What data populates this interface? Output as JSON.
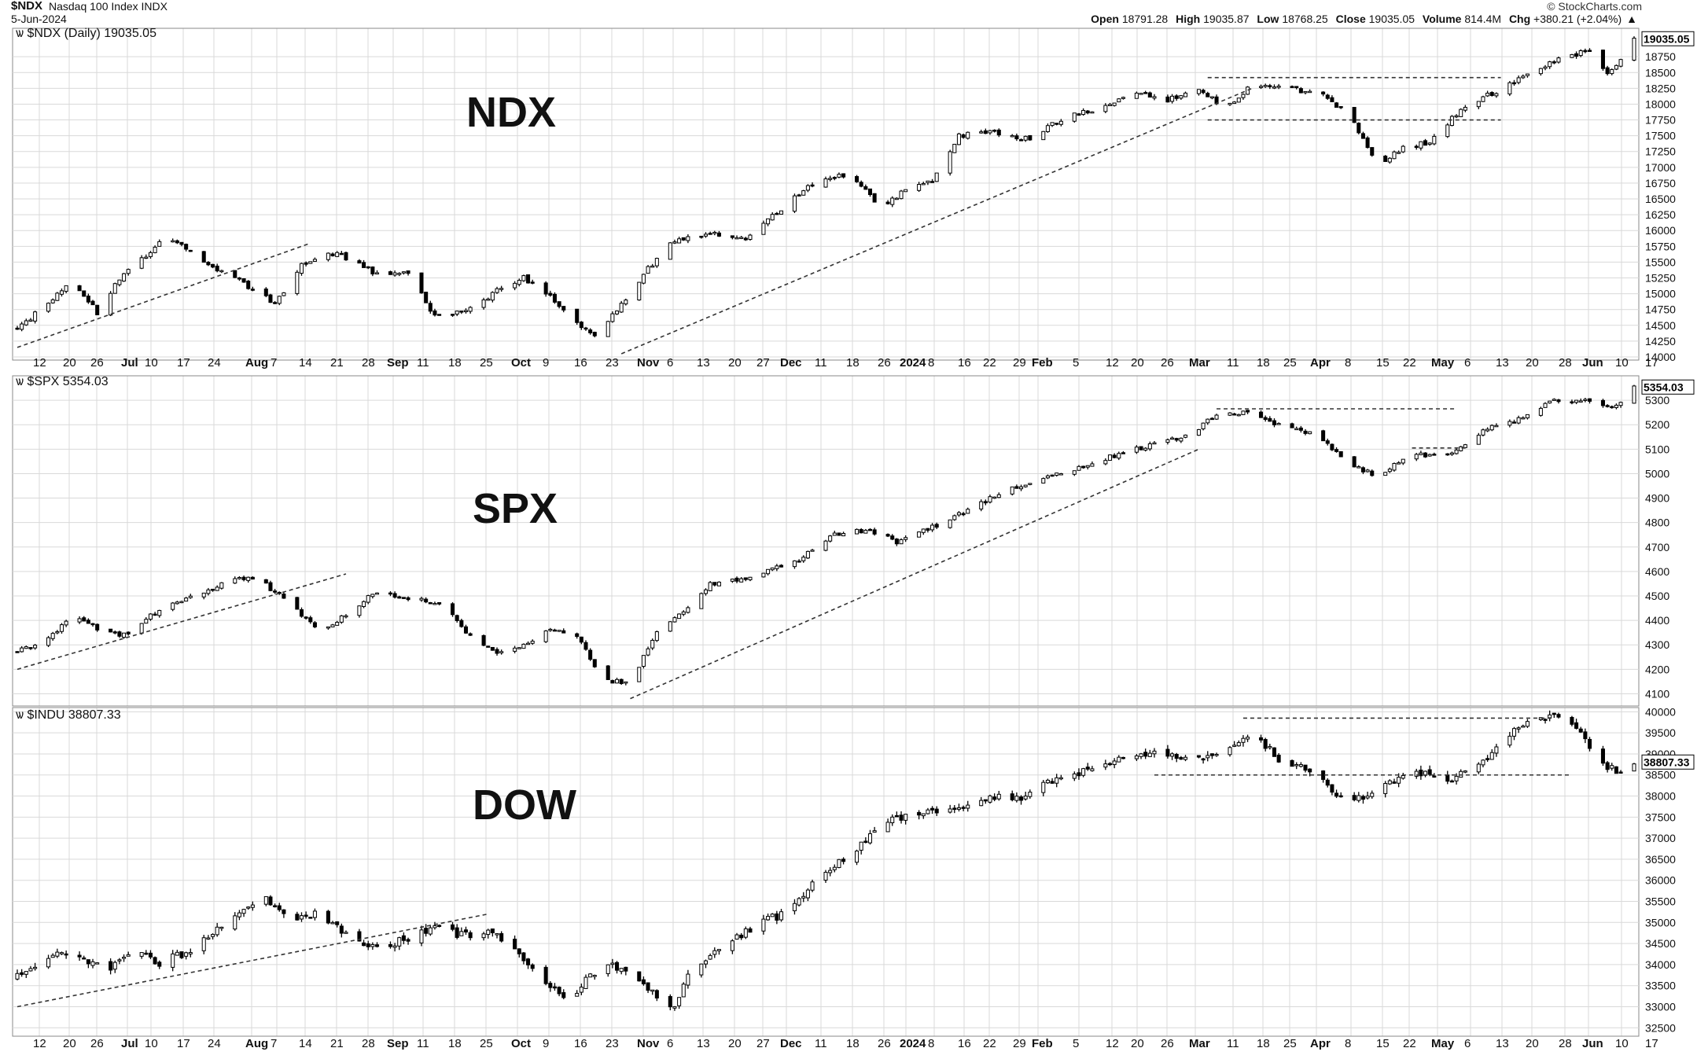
{
  "header": {
    "symbol": "$NDX",
    "name": "Nasdaq 100 Index",
    "exchange": "INDX",
    "date": "5-Jun-2024",
    "watermark": "© StockCharts.com",
    "open_label": "Open",
    "open": "18791.28",
    "high_label": "High",
    "high": "19035.87",
    "low_label": "Low",
    "low": "18768.25",
    "close_label": "Close",
    "close": "19035.05",
    "volume_label": "Volume",
    "volume": "814.4M",
    "chg_label": "Chg",
    "chg": "+380.21 (+2.04%)",
    "chg_icon": "triangle-up-icon"
  },
  "colors": {
    "grid": "#d9d9d9",
    "up": "#ffffff",
    "down": "#000000",
    "trend": "#333333"
  },
  "x_axis": {
    "labels": [
      "12",
      "20",
      "26",
      "Jul",
      "10",
      "17",
      "24",
      "Aug",
      "7",
      "14",
      "21",
      "28",
      "Sep",
      "11",
      "18",
      "25",
      "Oct",
      "9",
      "16",
      "23",
      "Nov",
      "6",
      "13",
      "20",
      "27",
      "Dec",
      "11",
      "18",
      "26",
      "2024",
      "8",
      "16",
      "22",
      "29",
      "Feb",
      "5",
      "12",
      "20",
      "26",
      "Mar",
      "11",
      "18",
      "25",
      "Apr",
      "8",
      "15",
      "22",
      "May",
      "6",
      "13",
      "20",
      "28",
      "Jun",
      "10",
      "17"
    ],
    "bold": [
      "Jul",
      "Aug",
      "Sep",
      "Oct",
      "Nov",
      "Dec",
      "2024",
      "Feb",
      "Mar",
      "Apr",
      "May",
      "Jun"
    ]
  },
  "chart_data": [
    {
      "type": "candlestick",
      "panel_title": "$NDX (Daily) 19035.05",
      "overlay_label": "NDX",
      "last_value": "19035.05",
      "y_ticks": [
        14000,
        14250,
        14500,
        14750,
        15000,
        15250,
        15500,
        15750,
        16000,
        16250,
        16500,
        16750,
        17000,
        17250,
        17500,
        17750,
        18000,
        18250,
        18500,
        18750
      ],
      "ylim": [
        13950,
        19200
      ],
      "anchors": [
        [
          0,
          14450
        ],
        [
          8,
          14900
        ],
        [
          12,
          15250
        ],
        [
          18,
          14700
        ],
        [
          22,
          15150
        ],
        [
          28,
          15550
        ],
        [
          34,
          15900
        ],
        [
          42,
          15500
        ],
        [
          50,
          15200
        ],
        [
          58,
          14850
        ],
        [
          64,
          15450
        ],
        [
          72,
          15650
        ],
        [
          80,
          15350
        ],
        [
          88,
          15300
        ],
        [
          94,
          14650
        ],
        [
          102,
          14750
        ],
        [
          108,
          15050
        ],
        [
          114,
          15250
        ],
        [
          120,
          14950
        ],
        [
          126,
          14550
        ],
        [
          130,
          14300
        ],
        [
          136,
          14850
        ],
        [
          142,
          15400
        ],
        [
          148,
          15850
        ],
        [
          156,
          15950
        ],
        [
          164,
          15850
        ],
        [
          172,
          16350
        ],
        [
          180,
          16800
        ],
        [
          188,
          16900
        ],
        [
          194,
          16350
        ],
        [
          200,
          16650
        ],
        [
          206,
          16800
        ],
        [
          212,
          17500
        ],
        [
          220,
          17550
        ],
        [
          228,
          17450
        ],
        [
          236,
          17800
        ],
        [
          244,
          17950
        ],
        [
          252,
          18200
        ],
        [
          258,
          18050
        ],
        [
          266,
          18200
        ],
        [
          272,
          17950
        ],
        [
          278,
          18300
        ],
        [
          286,
          18250
        ],
        [
          294,
          18150
        ],
        [
          300,
          17800
        ],
        [
          306,
          17050
        ],
        [
          312,
          17300
        ],
        [
          318,
          17400
        ],
        [
          324,
          17850
        ],
        [
          330,
          18100
        ],
        [
          336,
          18300
        ],
        [
          342,
          18550
        ],
        [
          348,
          18750
        ],
        [
          354,
          18850
        ],
        [
          358,
          18500
        ],
        [
          362,
          18750
        ],
        [
          364,
          19035
        ]
      ],
      "n": 365,
      "seed": 11,
      "vol": 60,
      "trendlines": [
        {
          "from": [
            0,
            14150
          ],
          "to": [
            66,
            15800
          ]
        },
        {
          "from": [
            136,
            14050
          ],
          "to": [
            278,
            18250
          ]
        }
      ],
      "hlines": [
        {
          "from": [
            268,
            18420
          ],
          "to": [
            334,
            18420
          ]
        },
        {
          "from": [
            268,
            17750
          ],
          "to": [
            334,
            17750
          ]
        }
      ]
    },
    {
      "type": "candlestick",
      "panel_title": "$SPX 5354.03",
      "overlay_label": "SPX",
      "last_value": "5354.03",
      "y_ticks": [
        4100,
        4200,
        4300,
        4400,
        4500,
        4600,
        4700,
        4800,
        4900,
        5000,
        5100,
        5200,
        5300
      ],
      "ylim": [
        4050,
        5400
      ],
      "anchors": [
        [
          0,
          4270
        ],
        [
          8,
          4340
        ],
        [
          12,
          4420
        ],
        [
          18,
          4370
        ],
        [
          24,
          4340
        ],
        [
          30,
          4420
        ],
        [
          36,
          4470
        ],
        [
          42,
          4510
        ],
        [
          48,
          4570
        ],
        [
          54,
          4570
        ],
        [
          60,
          4490
        ],
        [
          68,
          4360
        ],
        [
          74,
          4420
        ],
        [
          80,
          4510
        ],
        [
          88,
          4490
        ],
        [
          96,
          4470
        ],
        [
          102,
          4330
        ],
        [
          108,
          4270
        ],
        [
          114,
          4300
        ],
        [
          120,
          4370
        ],
        [
          126,
          4330
        ],
        [
          132,
          4160
        ],
        [
          138,
          4140
        ],
        [
          144,
          4360
        ],
        [
          150,
          4430
        ],
        [
          156,
          4550
        ],
        [
          166,
          4580
        ],
        [
          176,
          4650
        ],
        [
          184,
          4750
        ],
        [
          192,
          4770
        ],
        [
          198,
          4720
        ],
        [
          206,
          4780
        ],
        [
          214,
          4850
        ],
        [
          222,
          4930
        ],
        [
          230,
          4980
        ],
        [
          240,
          5030
        ],
        [
          248,
          5080
        ],
        [
          256,
          5120
        ],
        [
          264,
          5160
        ],
        [
          270,
          5240
        ],
        [
          276,
          5250
        ],
        [
          284,
          5200
        ],
        [
          292,
          5160
        ],
        [
          300,
          5040
        ],
        [
          306,
          4990
        ],
        [
          314,
          5080
        ],
        [
          322,
          5070
        ],
        [
          330,
          5180
        ],
        [
          338,
          5220
        ],
        [
          346,
          5300
        ],
        [
          354,
          5300
        ],
        [
          360,
          5270
        ],
        [
          364,
          5354
        ]
      ],
      "n": 365,
      "seed": 23,
      "vol": 14,
      "trendlines": [
        {
          "from": [
            0,
            4200
          ],
          "to": [
            74,
            4590
          ]
        },
        {
          "from": [
            138,
            4080
          ],
          "to": [
            266,
            5100
          ]
        }
      ],
      "hlines": [
        {
          "from": [
            270,
            5265
          ],
          "to": [
            324,
            5265
          ]
        },
        {
          "from": [
            314,
            5105
          ],
          "to": [
            326,
            5105
          ]
        }
      ]
    },
    {
      "type": "candlestick",
      "panel_title": "$INDU 38807.33",
      "overlay_label": "DOW",
      "last_value": "38807.33",
      "y_ticks": [
        32500,
        33000,
        33500,
        34000,
        34500,
        35000,
        35500,
        36000,
        36500,
        37000,
        37500,
        38000,
        38500,
        39000,
        39500,
        40000
      ],
      "ylim": [
        32300,
        40100
      ],
      "anchors": [
        [
          0,
          33700
        ],
        [
          8,
          34300
        ],
        [
          14,
          34100
        ],
        [
          20,
          33900
        ],
        [
          26,
          34300
        ],
        [
          32,
          34000
        ],
        [
          38,
          34300
        ],
        [
          44,
          34800
        ],
        [
          50,
          35300
        ],
        [
          56,
          35600
        ],
        [
          62,
          35100
        ],
        [
          68,
          35200
        ],
        [
          74,
          34700
        ],
        [
          80,
          34400
        ],
        [
          88,
          34600
        ],
        [
          94,
          34900
        ],
        [
          100,
          34700
        ],
        [
          106,
          34800
        ],
        [
          112,
          34300
        ],
        [
          118,
          33700
        ],
        [
          124,
          33200
        ],
        [
          130,
          33800
        ],
        [
          136,
          34000
        ],
        [
          142,
          33400
        ],
        [
          148,
          33000
        ],
        [
          152,
          33900
        ],
        [
          158,
          34400
        ],
        [
          166,
          34900
        ],
        [
          174,
          35300
        ],
        [
          182,
          36200
        ],
        [
          188,
          36600
        ],
        [
          194,
          37300
        ],
        [
          202,
          37600
        ],
        [
          210,
          37600
        ],
        [
          218,
          37900
        ],
        [
          226,
          38000
        ],
        [
          234,
          38400
        ],
        [
          242,
          38600
        ],
        [
          250,
          38900
        ],
        [
          256,
          39000
        ],
        [
          264,
          38800
        ],
        [
          272,
          39000
        ],
        [
          278,
          39500
        ],
        [
          284,
          38900
        ],
        [
          292,
          38500
        ],
        [
          298,
          37900
        ],
        [
          306,
          38100
        ],
        [
          314,
          38600
        ],
        [
          322,
          38300
        ],
        [
          330,
          38800
        ],
        [
          338,
          39600
        ],
        [
          346,
          39900
        ],
        [
          352,
          39500
        ],
        [
          356,
          38800
        ],
        [
          360,
          38600
        ],
        [
          364,
          38807
        ]
      ],
      "n": 365,
      "seed": 37,
      "vol": 150,
      "trendlines": [
        {
          "from": [
            0,
            33000
          ],
          "to": [
            106,
            35200
          ]
        }
      ],
      "hlines": [
        {
          "from": [
            276,
            39850
          ],
          "to": [
            346,
            39850
          ]
        },
        {
          "from": [
            256,
            38500
          ],
          "to": [
            350,
            38500
          ]
        }
      ]
    }
  ]
}
